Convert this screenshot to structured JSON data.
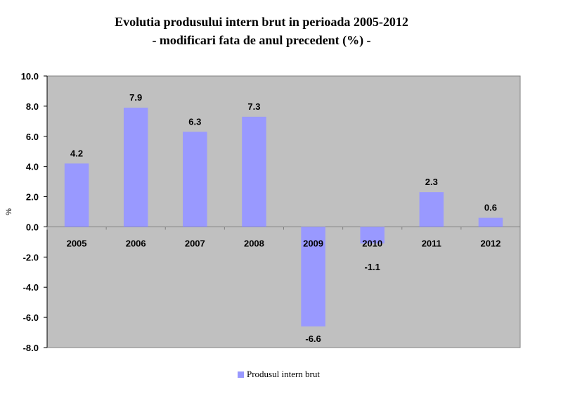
{
  "chart_data": {
    "type": "bar",
    "title": "Evolutia produsului intern brut in perioada 2005-2012",
    "subtitle": "- modificari fata de anul precedent (%) -",
    "ylabel": "%",
    "xlabel": "",
    "categories": [
      "2005",
      "2006",
      "2007",
      "2008",
      "2009",
      "2010",
      "2011",
      "2012"
    ],
    "series": [
      {
        "name": "Produsul intern brut",
        "values": [
          4.2,
          7.9,
          6.3,
          7.3,
          -6.6,
          -1.1,
          2.3,
          0.6
        ]
      }
    ],
    "data_labels": [
      "4.2",
      "7.9",
      "6.3",
      "7.3",
      "-6.6",
      "-1.1",
      "2.3",
      "0.6"
    ],
    "ylim": [
      -8,
      10
    ],
    "yticks": [
      10,
      8,
      6,
      4,
      2,
      0,
      -2,
      -4,
      -6,
      -8
    ],
    "ytick_labels": [
      "10.0",
      "8.0",
      "6.0",
      "4.0",
      "2.0",
      "0.0",
      "-2.0",
      "-4.0",
      "-6.0",
      "-8.0"
    ],
    "grid": false,
    "legend": "bottom",
    "colors": {
      "bar": "#9999ff",
      "plot_bg": "#c0c0c0",
      "axis": "#808080"
    }
  }
}
